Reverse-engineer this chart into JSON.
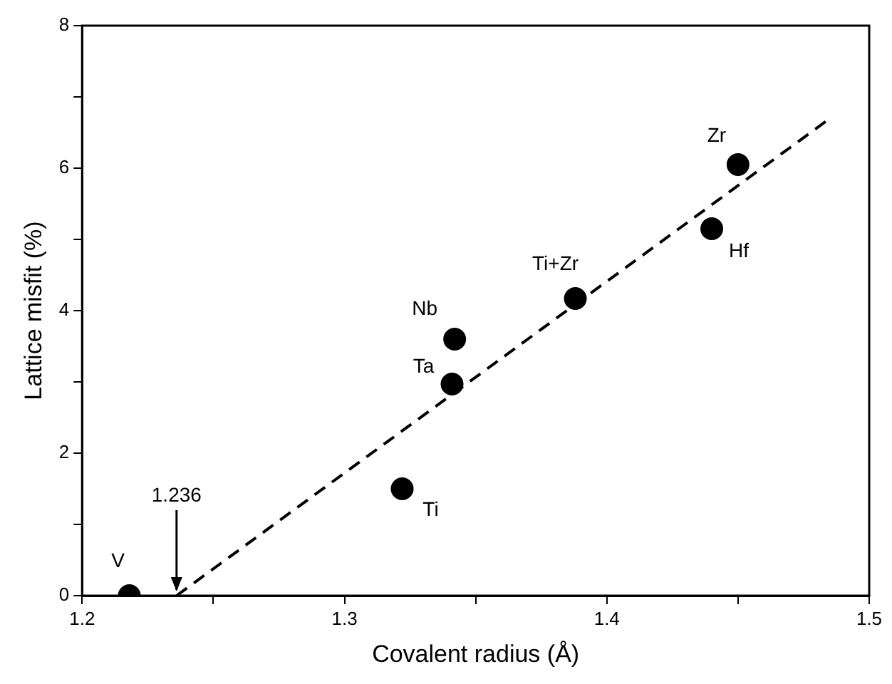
{
  "chart_data": {
    "type": "scatter",
    "xlabel": "Covalent radius (Å)",
    "ylabel": "Lattice misfit (%)",
    "xlim": [
      1.2,
      1.5
    ],
    "xticks": [
      1.2,
      {
        "value": 1.25,
        "label": null
      },
      1.3,
      {
        "value": 1.35,
        "label": null
      },
      1.4,
      {
        "value": 1.45,
        "label": null
      },
      1.5
    ],
    "ylim": [
      0,
      8
    ],
    "yticks": [
      0,
      {
        "value": 1,
        "label": null
      },
      2,
      {
        "value": 3,
        "label": null
      },
      4,
      {
        "value": 5,
        "label": null
      },
      6,
      {
        "value": 7,
        "label": null
      },
      8
    ],
    "grid": false,
    "legend": false,
    "series": [
      {
        "type": "scatter",
        "color": "#000000",
        "marker": "circle",
        "x": [
          1.218,
          1.322,
          1.341,
          1.342,
          1.388,
          1.44,
          1.45
        ],
        "values": [
          0,
          1.5,
          2.97,
          3.6,
          4.17,
          5.15,
          6.05
        ]
      },
      {
        "type": "line",
        "color": "#000000",
        "marker": "none",
        "line_style": "dashed",
        "x": [
          1.236,
          1.484
        ],
        "values": [
          0,
          6.67
        ]
      }
    ],
    "annotations": [
      {
        "text": "V",
        "x": 1.218,
        "y": 0
      },
      {
        "text": "Ti",
        "x": 1.322,
        "y": 1.5
      },
      {
        "text": "Ta",
        "x": 1.341,
        "y": 2.97
      },
      {
        "text": "Nb",
        "x": 1.342,
        "y": 3.6
      },
      {
        "text": "Ti+Zr",
        "x": 1.388,
        "y": 4.17
      },
      {
        "text": "Hf",
        "x": 1.44,
        "y": 5.15
      },
      {
        "text": "Zr",
        "x": 1.45,
        "y": 6.05
      },
      {
        "text": "1.236",
        "x": 1.236,
        "y": 0
      }
    ]
  }
}
